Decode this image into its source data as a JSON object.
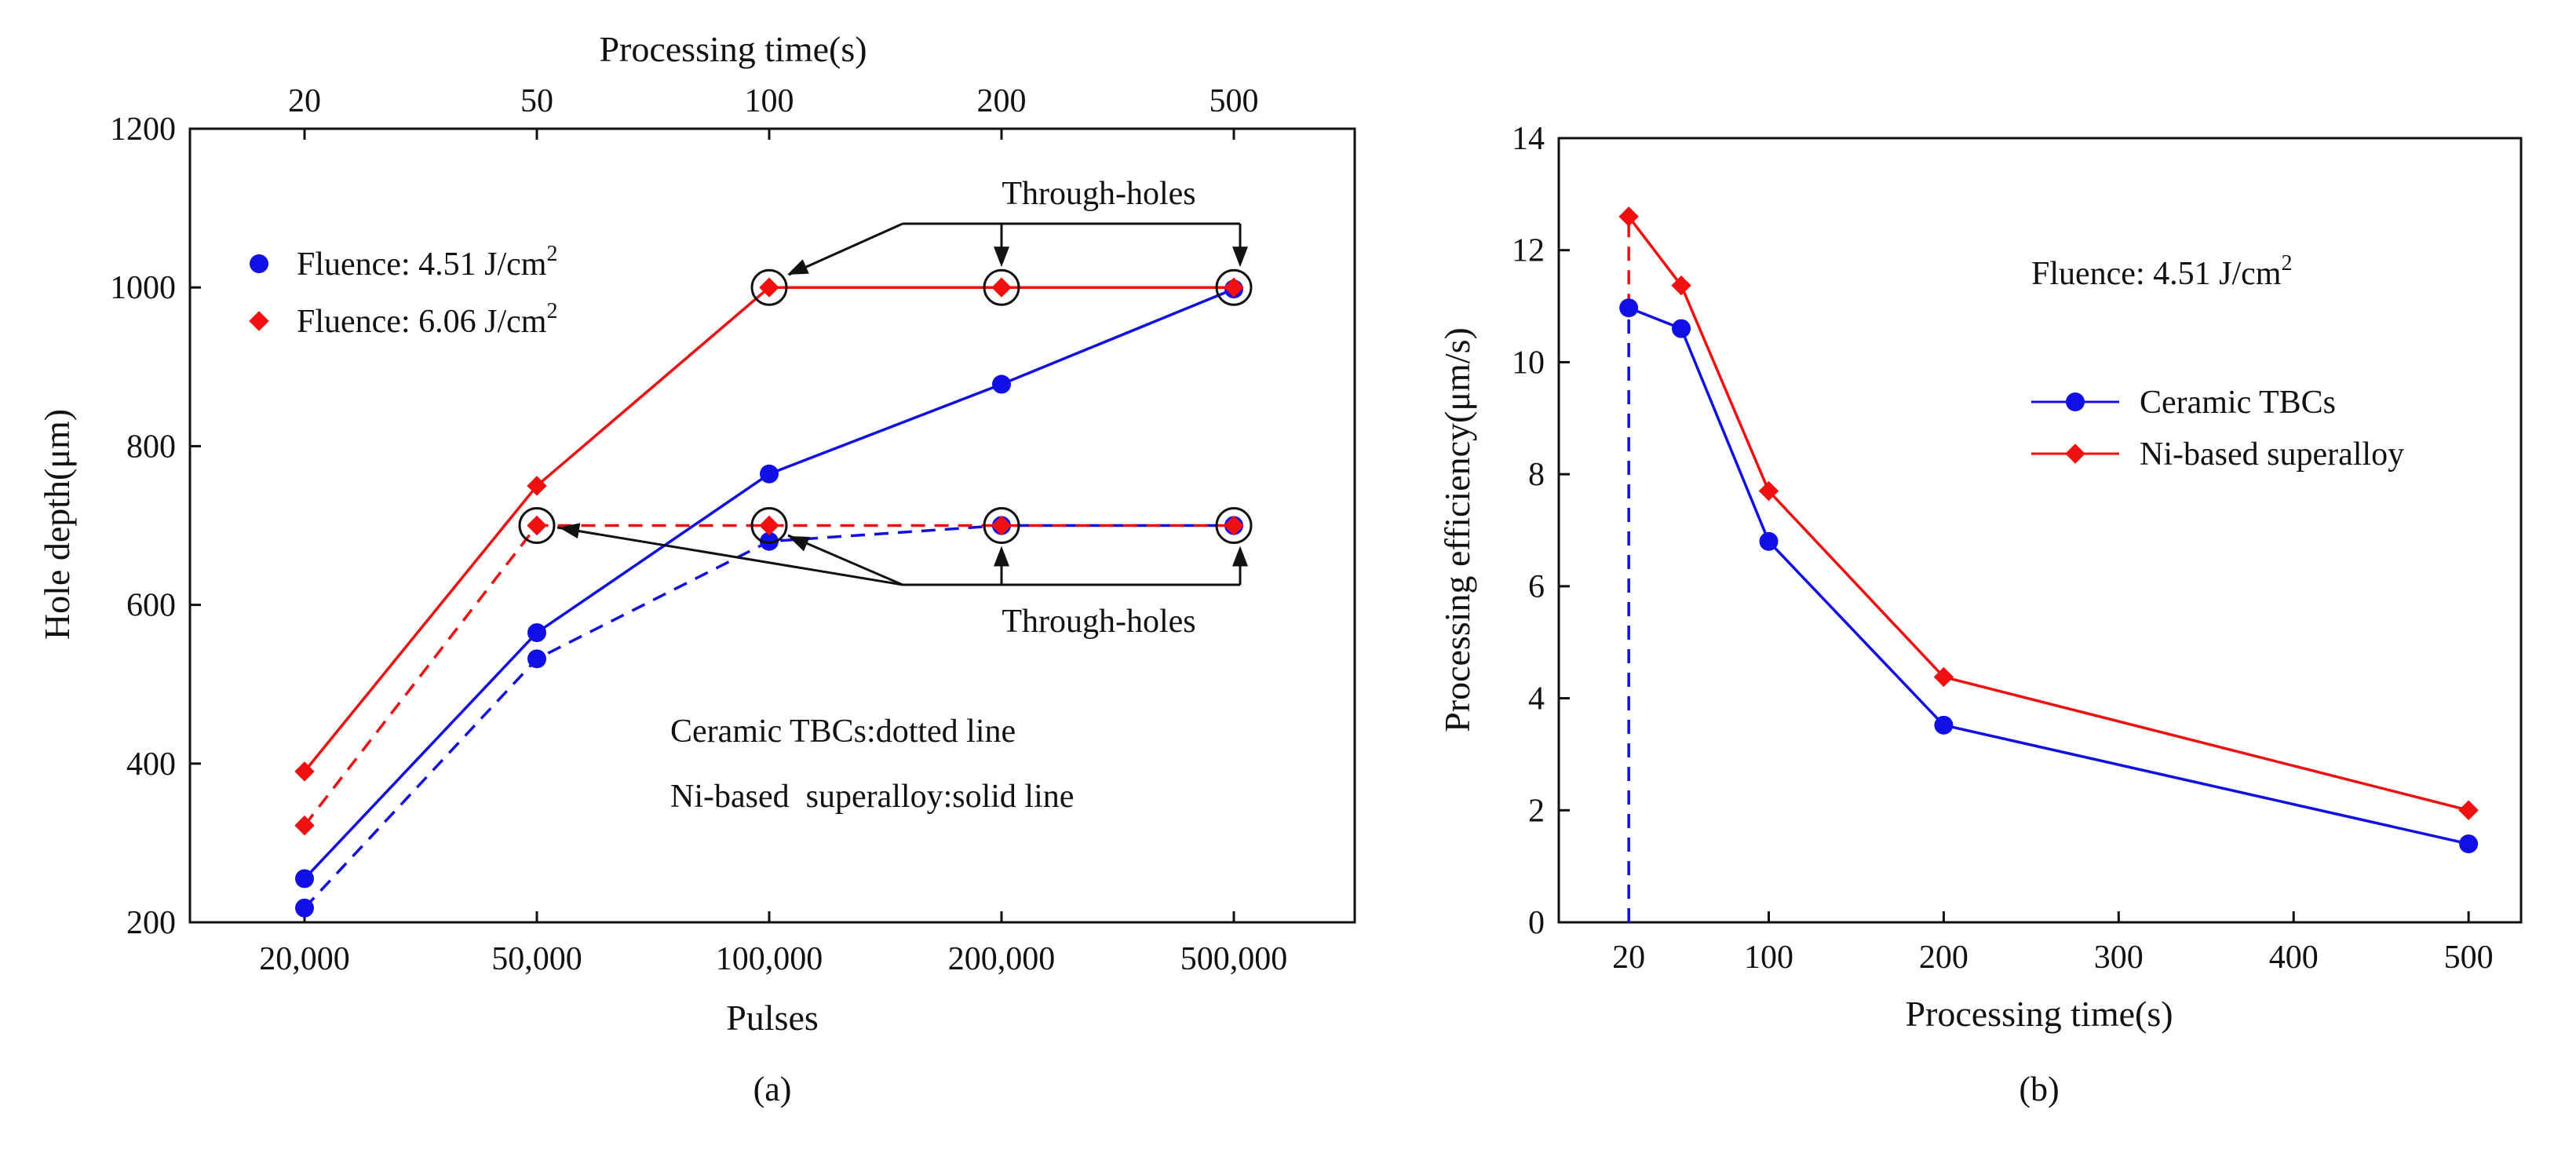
{
  "colors": {
    "blue": "#1010e6",
    "red": "#f01010",
    "axis": "#111111"
  },
  "chart_data": [
    {
      "id": "a",
      "type": "line",
      "caption": "(a)",
      "xlabel": "Pulses",
      "x2label": "Processing time(s)",
      "ylabel": "Hole depth(μm)",
      "categories": [
        "20,000",
        "50,000",
        "100,000",
        "200,000",
        "500,000"
      ],
      "top_categories": [
        "20",
        "50",
        "100",
        "200",
        "500"
      ],
      "ylim": [
        200,
        1200
      ],
      "yticks": [
        "200",
        "400",
        "600",
        "800",
        "1000",
        "1200"
      ],
      "series": [
        {
          "name": "Fluence: 4.51 J/cm",
          "sup": "2",
          "material": "Ni-based superalloy",
          "style": "solid",
          "marker": "circle",
          "color": "#1010e6",
          "values": [
            255,
            565,
            765,
            878,
            998
          ]
        },
        {
          "name": "Fluence: 4.51 J/cm",
          "sup": "2",
          "material": "Ceramic TBCs",
          "style": "dashed",
          "marker": "circle",
          "color": "#1010e6",
          "values": [
            218,
            532,
            680,
            700,
            700
          ]
        },
        {
          "name": "Fluence: 6.06 J/cm",
          "sup": "2",
          "material": "Ni-based superalloy",
          "style": "solid",
          "marker": "diamond",
          "color": "#f01010",
          "values": [
            390,
            750,
            1000,
            1000,
            1000
          ]
        },
        {
          "name": "Fluence: 6.06 J/cm",
          "sup": "2",
          "material": "Ceramic TBCs",
          "style": "dashed",
          "marker": "diamond",
          "color": "#f01010",
          "values": [
            322,
            700,
            700,
            700,
            700
          ]
        }
      ],
      "through_hole_label": "Through-holes",
      "through_holes_top": [
        2,
        3,
        4
      ],
      "through_holes_bottom": [
        1,
        2,
        3,
        4
      ],
      "through_holes_value_top": 1000,
      "through_holes_value_bottom": 700,
      "notes": [
        "Ceramic TBCs:dotted line",
        "Ni-based  superalloy:solid line"
      ],
      "legend_position": "top-left"
    },
    {
      "id": "b",
      "type": "line",
      "caption": "(b)",
      "xlabel": "Processing time(s)",
      "ylabel": "Processing efficiency(μm/s)",
      "xlim": [
        -20,
        530
      ],
      "ylim": [
        0,
        14
      ],
      "xticks": [
        20,
        100,
        200,
        300,
        400,
        500
      ],
      "yticks": [
        0,
        2,
        4,
        6,
        8,
        10,
        12,
        14
      ],
      "annotation": "Fluence: 4.51 J/cm",
      "annotation_sup": "2",
      "series": [
        {
          "name": "Ceramic TBCs",
          "marker": "circle",
          "color": "#1010e6",
          "x": [
            20,
            50,
            100,
            200,
            500
          ],
          "y": [
            10.97,
            10.6,
            6.8,
            3.52,
            1.4
          ]
        },
        {
          "name": "Ni-based superalloy",
          "marker": "diamond",
          "color": "#f01010",
          "x": [
            20,
            50,
            100,
            200,
            500
          ],
          "y": [
            12.6,
            11.37,
            7.7,
            4.38,
            2.0
          ]
        }
      ],
      "dashed_vertical_x": 20,
      "legend_position": "center-right"
    }
  ]
}
